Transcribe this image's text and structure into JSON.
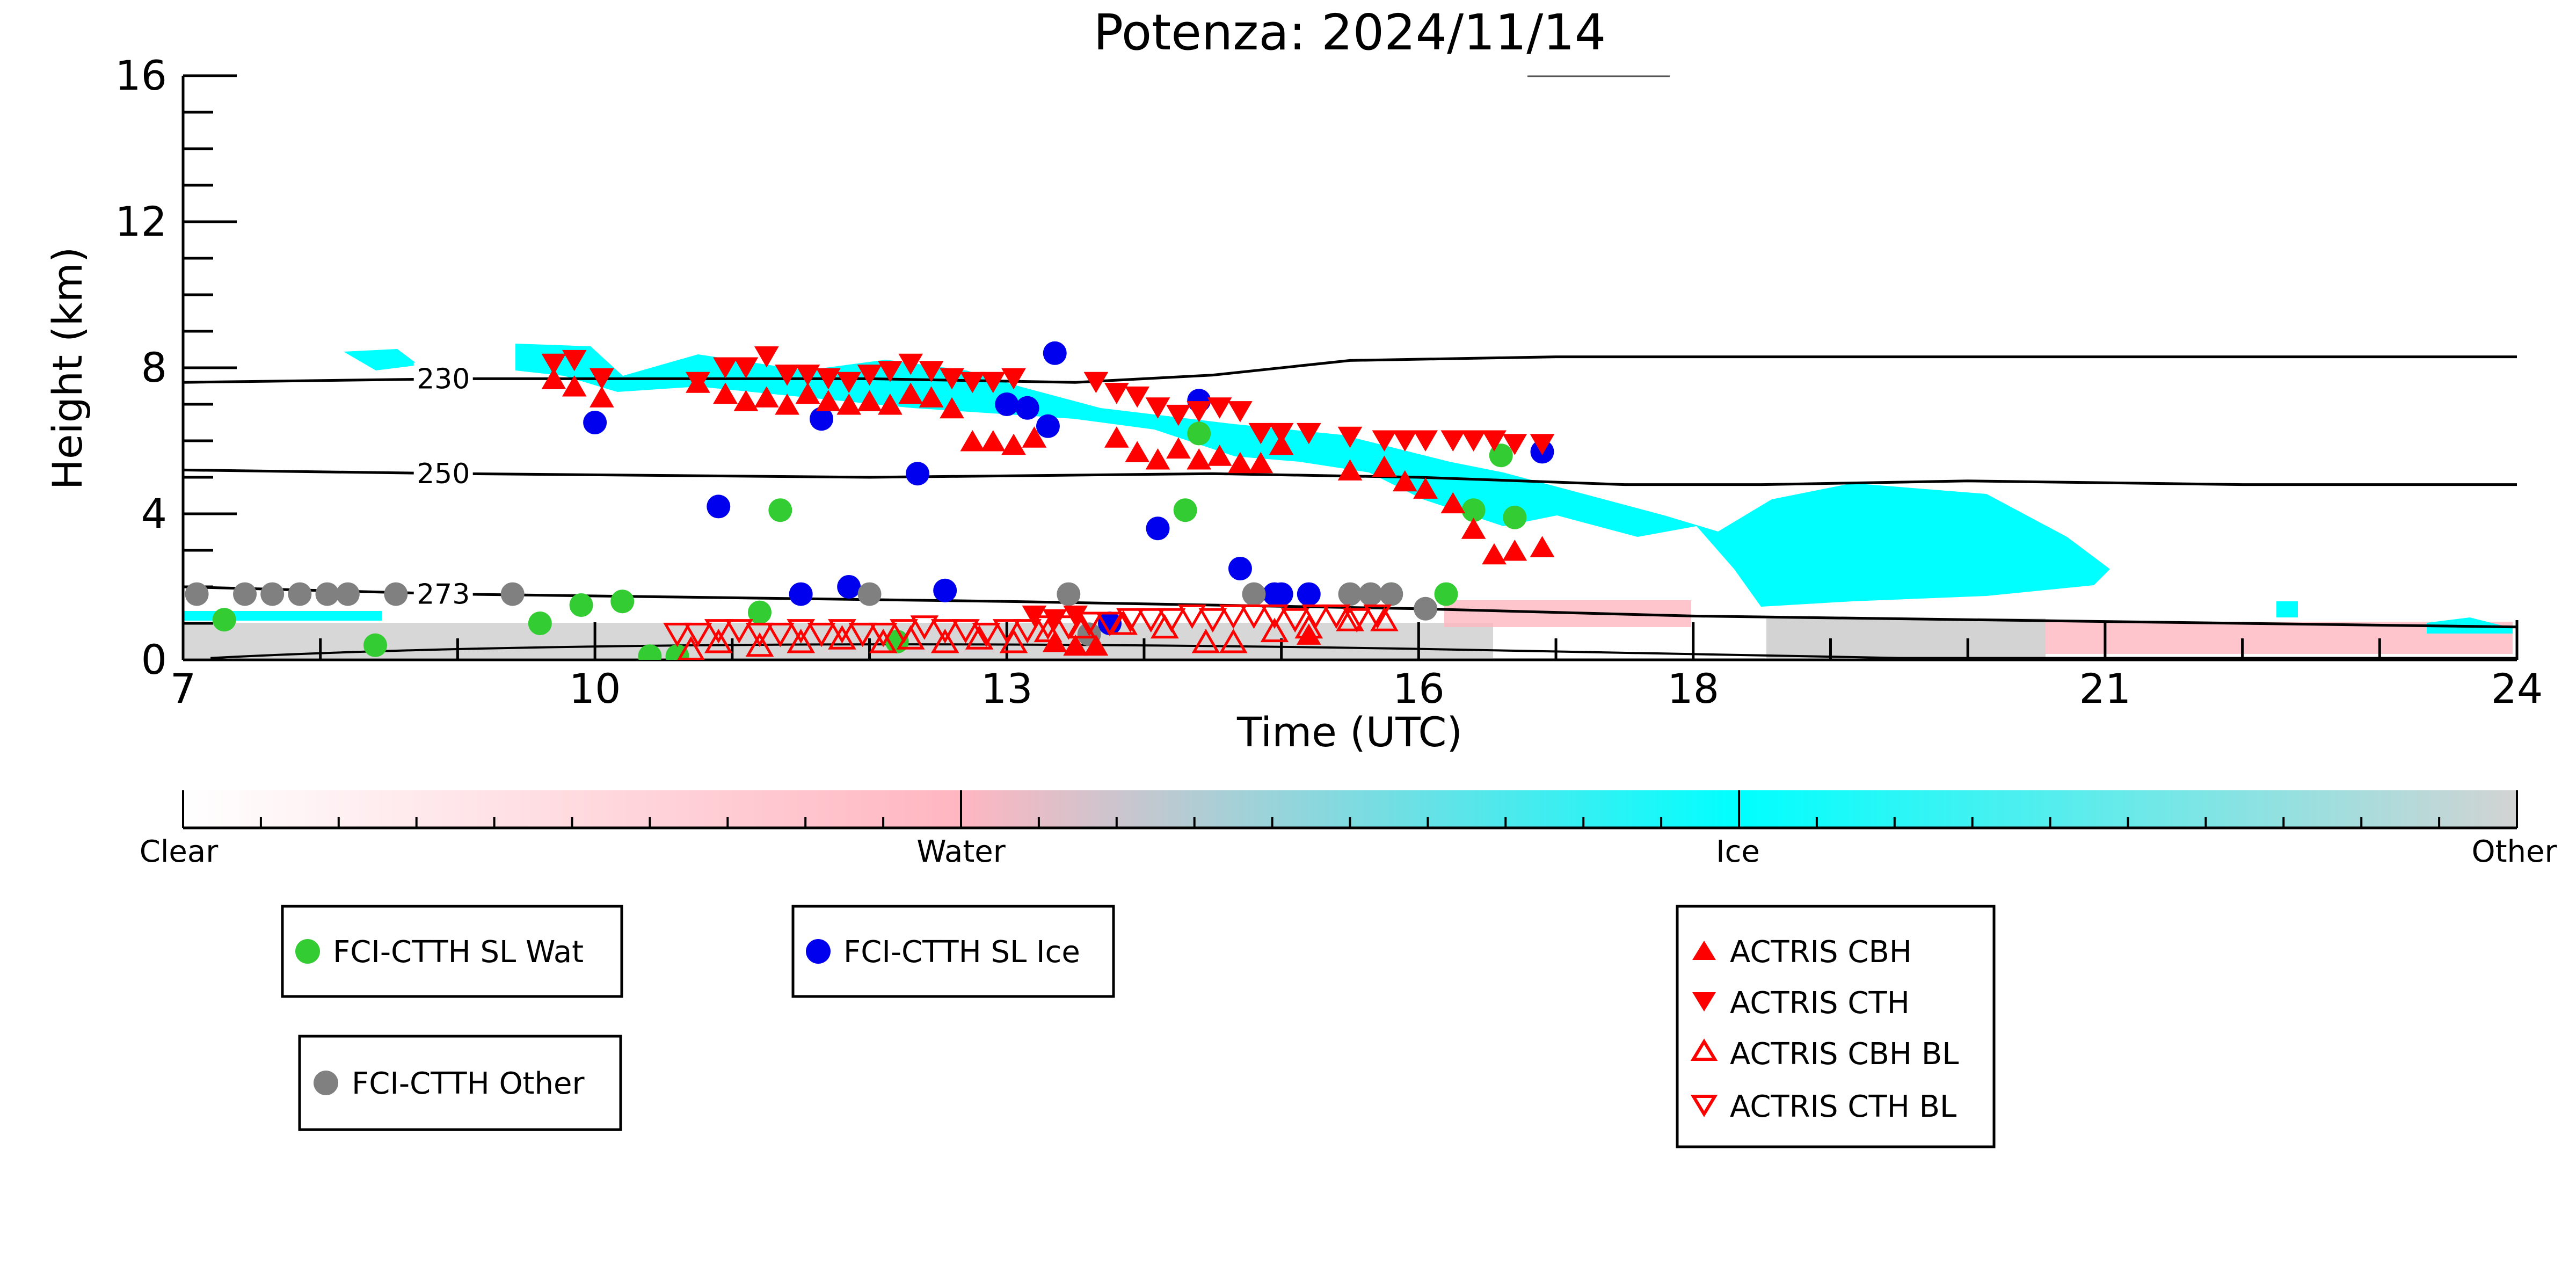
{
  "chart_data": {
    "type": "scatter",
    "title": "Potenza: 2024/11/14",
    "xlabel": "Time (UTC)",
    "ylabel": "Height (km)",
    "xlim": [
      7,
      24
    ],
    "ylim": [
      0,
      16
    ],
    "x_ticks": [
      "7",
      "10",
      "13",
      "16",
      "18",
      "21",
      "24"
    ],
    "y_ticks": [
      "0",
      "4",
      "8",
      "12",
      "16"
    ],
    "grid": false,
    "isotherms": [
      {
        "label": "230",
        "points": [
          [
            7,
            7.6
          ],
          [
            9,
            7.7
          ],
          [
            12,
            7.7
          ],
          [
            13.5,
            7.6
          ],
          [
            14.5,
            7.8
          ],
          [
            15.5,
            8.2
          ],
          [
            17,
            8.3
          ],
          [
            20,
            8.3
          ],
          [
            24,
            8.3
          ]
        ]
      },
      {
        "label": "250",
        "points": [
          [
            7,
            5.2
          ],
          [
            9,
            5.1
          ],
          [
            12,
            5.0
          ],
          [
            14.5,
            5.1
          ],
          [
            16,
            5.0
          ],
          [
            17.5,
            4.8
          ],
          [
            18.5,
            4.8
          ],
          [
            20,
            4.9
          ],
          [
            22,
            4.8
          ],
          [
            24,
            4.8
          ]
        ]
      },
      {
        "label": "273",
        "points": [
          [
            7,
            2.0
          ],
          [
            9,
            1.8
          ],
          [
            11,
            1.7
          ],
          [
            13,
            1.6
          ],
          [
            14.5,
            1.5
          ],
          [
            16,
            1.4
          ],
          [
            18,
            1.2
          ],
          [
            20,
            1.1
          ],
          [
            22,
            1.0
          ],
          [
            24,
            0.9
          ]
        ]
      }
    ],
    "colorbar": {
      "labels": [
        "Clear",
        "Water",
        "Ice",
        "Other"
      ],
      "colors": [
        "#ffffff",
        "#ffb6c1",
        "#00ffff",
        "#d3d3d3"
      ]
    },
    "series": [
      {
        "name": "FCI-CTTH SL Wat",
        "color": "#33cc33",
        "marker": "circle",
        "x": [
          7.3,
          8.4,
          9.6,
          9.9,
          10.2,
          10.4,
          10.6,
          11.2,
          11.35,
          12.2,
          14.4,
          14.3,
          15.8,
          16.2,
          16.4,
          16.6,
          16.7
        ],
        "y": [
          1.1,
          0.4,
          1.0,
          1.5,
          1.6,
          0.1,
          0.1,
          1.3,
          4.1,
          0.5,
          6.2,
          4.1,
          1.8,
          1.8,
          4.1,
          5.6,
          3.9
        ]
      },
      {
        "name": "FCI-CTTH SL Ice",
        "color": "#0000ee",
        "marker": "circle",
        "x": [
          10.0,
          10.9,
          11.5,
          11.65,
          11.85,
          12.35,
          12.55,
          13.0,
          13.15,
          13.3,
          13.35,
          13.75,
          14.1,
          14.4,
          14.7,
          14.95,
          15.0,
          15.2,
          16.9
        ],
        "y": [
          6.5,
          4.2,
          1.8,
          6.6,
          2.0,
          5.1,
          1.9,
          7.0,
          6.9,
          6.4,
          8.4,
          1.0,
          3.6,
          7.1,
          2.5,
          1.8,
          1.8,
          1.8,
          5.7
        ]
      },
      {
        "name": "FCI-CTTH Other",
        "color": "#808080",
        "marker": "circle",
        "x": [
          7.1,
          7.45,
          7.65,
          7.85,
          8.05,
          8.2,
          8.55,
          9.4,
          12.0,
          13.45,
          13.6,
          14.8,
          15.5,
          15.65,
          15.8,
          16.05
        ],
        "y": [
          1.8,
          1.8,
          1.8,
          1.8,
          1.8,
          1.8,
          1.8,
          1.8,
          1.8,
          1.8,
          0.7,
          1.8,
          1.8,
          1.8,
          1.8,
          1.4
        ]
      },
      {
        "name": "ACTRIS CBH",
        "color": "#ff0000",
        "marker": "triangle-up",
        "x": [
          9.7,
          9.85,
          10.05,
          10.75,
          10.95,
          11.1,
          11.25,
          11.4,
          11.55,
          11.7,
          11.85,
          12.0,
          12.15,
          12.3,
          12.45,
          12.6,
          12.75,
          12.9,
          13.05,
          13.2,
          13.35,
          13.5,
          13.65,
          13.8,
          13.95,
          14.1,
          14.25,
          14.4,
          14.55,
          14.7,
          14.85,
          15.0,
          15.2,
          15.5,
          15.75,
          15.9,
          16.05,
          16.25,
          16.4,
          16.55,
          16.7,
          16.9
        ],
        "y": [
          7.7,
          7.5,
          7.2,
          7.6,
          7.3,
          7.1,
          7.2,
          7.0,
          7.3,
          7.1,
          7.0,
          7.1,
          7.0,
          7.3,
          7.2,
          6.9,
          6.0,
          6.0,
          5.9,
          6.1,
          0.5,
          0.4,
          0.4,
          6.1,
          5.7,
          5.5,
          5.8,
          5.5,
          5.6,
          5.4,
          5.4,
          5.9,
          0.7,
          5.2,
          5.3,
          4.9,
          4.7,
          4.3,
          3.6,
          2.9,
          3.0,
          3.1
        ]
      },
      {
        "name": "ACTRIS CTH",
        "color": "#ff0000",
        "marker": "triangle-down",
        "x": [
          9.7,
          9.85,
          10.05,
          10.75,
          10.95,
          11.1,
          11.25,
          11.4,
          11.55,
          11.7,
          11.85,
          12.0,
          12.15,
          12.3,
          12.45,
          12.6,
          12.75,
          12.9,
          13.05,
          13.2,
          13.35,
          13.5,
          13.65,
          13.8,
          13.95,
          14.1,
          14.25,
          14.4,
          14.55,
          14.7,
          14.85,
          15.0,
          15.2,
          15.5,
          15.75,
          15.9,
          16.05,
          16.25,
          16.4,
          16.55,
          16.7,
          16.9
        ],
        "y": [
          8.1,
          8.2,
          7.7,
          7.6,
          8.0,
          8.0,
          8.3,
          7.8,
          7.8,
          7.7,
          7.6,
          7.8,
          7.9,
          8.1,
          7.9,
          7.7,
          7.6,
          7.6,
          7.7,
          1.2,
          1.1,
          1.2,
          7.6,
          7.3,
          7.2,
          6.9,
          6.7,
          6.8,
          6.9,
          6.8,
          6.2,
          6.2,
          6.2,
          6.1,
          6.0,
          6.0,
          6.0,
          6.0,
          6.0,
          6.0,
          5.9,
          5.9
        ]
      },
      {
        "name": "ACTRIS CBH BL",
        "color": "#ff0000",
        "marker": "triangle-up-open",
        "x": [
          10.7,
          10.9,
          11.2,
          11.5,
          11.8,
          12.1,
          12.3,
          12.55,
          12.8,
          13.05,
          13.3,
          13.55,
          13.85,
          14.15,
          14.45,
          14.65,
          14.95,
          15.2,
          15.5,
          15.75
        ],
        "y": [
          0.3,
          0.5,
          0.4,
          0.5,
          0.6,
          0.5,
          0.6,
          0.5,
          0.6,
          0.5,
          0.8,
          0.9,
          1.0,
          0.9,
          0.5,
          0.5,
          0.8,
          0.9,
          1.1,
          1.1
        ]
      },
      {
        "name": "ACTRIS CTH BL",
        "color": "#ff0000",
        "marker": "triangle-down-open",
        "x": [
          10.6,
          10.75,
          10.9,
          11.05,
          11.2,
          11.35,
          11.5,
          11.65,
          11.8,
          11.95,
          12.1,
          12.25,
          12.4,
          12.55,
          12.7,
          12.85,
          13.0,
          13.15,
          13.3,
          13.45,
          13.6,
          13.75,
          13.9,
          14.05,
          14.2,
          14.35,
          14.5,
          14.65,
          14.8,
          14.95,
          15.1,
          15.25,
          15.4,
          15.55,
          15.7
        ],
        "y": [
          0.7,
          0.7,
          0.8,
          0.8,
          0.7,
          0.7,
          0.8,
          0.7,
          0.8,
          0.7,
          0.7,
          0.8,
          0.9,
          0.8,
          0.8,
          0.7,
          0.8,
          0.8,
          0.9,
          0.9,
          1.0,
          1.0,
          1.1,
          1.1,
          1.1,
          1.2,
          1.1,
          1.2,
          1.2,
          1.2,
          1.1,
          1.2,
          1.2,
          1.1,
          1.2
        ]
      }
    ],
    "legends": [
      {
        "entries": [
          "FCI-CTTH SL Wat"
        ]
      },
      {
        "entries": [
          "FCI-CTTH SL Ice"
        ]
      },
      {
        "entries": [
          "FCI-CTTH Other"
        ]
      },
      {
        "entries": [
          "ACTRIS CBH",
          "ACTRIS CTH",
          "ACTRIS CBH BL",
          "ACTRIS CTH BL"
        ]
      }
    ]
  }
}
